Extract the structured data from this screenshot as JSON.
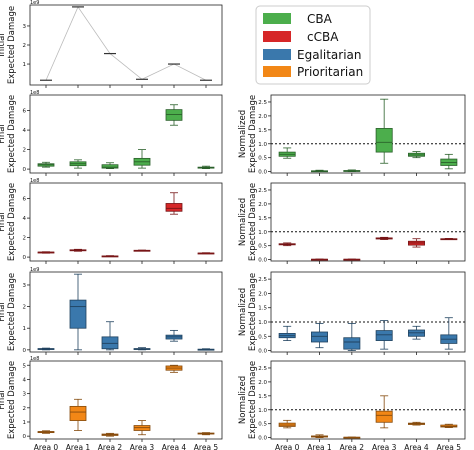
{
  "legend": {
    "entries": [
      {
        "label": "CBA",
        "color": "#4cae4c"
      },
      {
        "label": "cCBA",
        "color": "#d62728"
      },
      {
        "label": "Egalitarian",
        "color": "#3a78ac"
      },
      {
        "label": "Prioritarian",
        "color": "#f28716"
      }
    ],
    "placement": "top-right"
  },
  "colors": {
    "CBA": "#4cae4c",
    "cCBA": "#d62728",
    "Egalitarian": "#3a78ac",
    "Prioritarian": "#f28716"
  },
  "chart_data": [
    {
      "type": "line",
      "panel": "initial",
      "ylabel": [
        "Initial",
        "Expected Damage"
      ],
      "scale_label": "1e9",
      "yticks": [
        1,
        2,
        3
      ],
      "ylim": [
        -0.1,
        4.1
      ],
      "categories": [
        "Area 0",
        "Area 1",
        "Area 2",
        "Area 3",
        "Area 4",
        "Area 5"
      ],
      "values": [
        0.15,
        4.0,
        1.55,
        0.2,
        1.0,
        0.15
      ],
      "grid": false
    },
    {
      "type": "box",
      "panel": "final-CBA",
      "series": "CBA",
      "ylabel": [
        "Final",
        "Expected Damage"
      ],
      "scale_label": "1e8",
      "yticks": [
        0,
        2,
        4,
        6
      ],
      "ylim": [
        -0.4,
        7.6
      ],
      "categories": [
        "Area 0",
        "Area 1",
        "Area 2",
        "Area 3",
        "Area 4",
        "Area 5"
      ],
      "boxes": [
        {
          "min": 0.2,
          "q1": 0.3,
          "med": 0.45,
          "q3": 0.55,
          "max": 0.7
        },
        {
          "min": 0.1,
          "q1": 0.35,
          "med": 0.55,
          "q3": 0.75,
          "max": 0.95
        },
        {
          "min": 0.05,
          "q1": 0.1,
          "med": 0.2,
          "q3": 0.45,
          "max": 0.65
        },
        {
          "min": 0.1,
          "q1": 0.4,
          "med": 0.75,
          "q3": 1.1,
          "max": 2.0
        },
        {
          "min": 4.5,
          "q1": 5.0,
          "med": 5.6,
          "q3": 6.1,
          "max": 6.6
        },
        {
          "min": 0.05,
          "q1": 0.1,
          "med": 0.15,
          "q3": 0.2,
          "max": 0.3
        }
      ]
    },
    {
      "type": "box",
      "panel": "normalized-CBA",
      "series": "CBA",
      "ylabel": [
        "Normalized",
        "Expected Damage"
      ],
      "yticks": [
        0.0,
        0.5,
        1.0,
        1.5,
        2.0,
        2.5
      ],
      "ylim": [
        -0.05,
        2.75
      ],
      "refline": 1.0,
      "categories": [
        "Area 0",
        "Area 1",
        "Area 2",
        "Area 3",
        "Area 4",
        "Area 5"
      ],
      "boxes": [
        {
          "min": 0.48,
          "q1": 0.55,
          "med": 0.62,
          "q3": 0.7,
          "max": 0.85
        },
        {
          "min": 0.0,
          "q1": 0.01,
          "med": 0.02,
          "q3": 0.03,
          "max": 0.05
        },
        {
          "min": 0.0,
          "q1": 0.01,
          "med": 0.02,
          "q3": 0.04,
          "max": 0.06
        },
        {
          "min": 0.3,
          "q1": 0.7,
          "med": 1.05,
          "q3": 1.55,
          "max": 2.6
        },
        {
          "min": 0.5,
          "q1": 0.55,
          "med": 0.6,
          "q3": 0.66,
          "max": 0.72
        },
        {
          "min": 0.1,
          "q1": 0.22,
          "med": 0.33,
          "q3": 0.45,
          "max": 0.62
        }
      ]
    },
    {
      "type": "box",
      "panel": "final-cCBA",
      "series": "cCBA",
      "ylabel": [
        "Final",
        "Expected Damage"
      ],
      "scale_label": "1e8",
      "yticks": [
        0,
        2,
        4,
        6
      ],
      "ylim": [
        -0.4,
        7.6
      ],
      "categories": [
        "Area 0",
        "Area 1",
        "Area 2",
        "Area 3",
        "Area 4",
        "Area 5"
      ],
      "boxes": [
        {
          "min": 0.4,
          "q1": 0.45,
          "med": 0.5,
          "q3": 0.52,
          "max": 0.55
        },
        {
          "min": 0.6,
          "q1": 0.65,
          "med": 0.7,
          "q3": 0.75,
          "max": 0.8
        },
        {
          "min": 0.05,
          "q1": 0.08,
          "med": 0.1,
          "q3": 0.12,
          "max": 0.15
        },
        {
          "min": 0.62,
          "q1": 0.65,
          "med": 0.68,
          "q3": 0.7,
          "max": 0.72
        },
        {
          "min": 4.4,
          "q1": 4.7,
          "med": 5.0,
          "q3": 5.5,
          "max": 6.6
        },
        {
          "min": 0.35,
          "q1": 0.38,
          "med": 0.4,
          "q3": 0.42,
          "max": 0.45
        }
      ]
    },
    {
      "type": "box",
      "panel": "normalized-cCBA",
      "series": "cCBA",
      "ylabel": [
        "Normalized",
        "Expected Damage"
      ],
      "yticks": [
        0.0,
        0.5,
        1.0,
        1.5,
        2.0,
        2.5
      ],
      "ylim": [
        -0.05,
        2.75
      ],
      "refline": 1.0,
      "categories": [
        "Area 0",
        "Area 1",
        "Area 2",
        "Area 3",
        "Area 4",
        "Area 5"
      ],
      "boxes": [
        {
          "min": 0.5,
          "q1": 0.53,
          "med": 0.55,
          "q3": 0.57,
          "max": 0.6
        },
        {
          "min": 0.0,
          "q1": 0.005,
          "med": 0.01,
          "q3": 0.015,
          "max": 0.02
        },
        {
          "min": 0.0,
          "q1": 0.005,
          "med": 0.01,
          "q3": 0.015,
          "max": 0.02
        },
        {
          "min": 0.72,
          "q1": 0.74,
          "med": 0.76,
          "q3": 0.78,
          "max": 0.8
        },
        {
          "min": 0.45,
          "q1": 0.52,
          "med": 0.6,
          "q3": 0.66,
          "max": 0.75
        },
        {
          "min": 0.72,
          "q1": 0.73,
          "med": 0.74,
          "q3": 0.75,
          "max": 0.76
        }
      ]
    },
    {
      "type": "box",
      "panel": "final-Egalitarian",
      "series": "Egalitarian",
      "ylabel": [
        "Final",
        "Expected Damage"
      ],
      "scale_label": "1e9",
      "yticks": [
        0,
        1,
        2,
        3
      ],
      "ylim": [
        -0.1,
        3.6
      ],
      "categories": [
        "Area 0",
        "Area 1",
        "Area 2",
        "Area 3",
        "Area 4",
        "Area 5"
      ],
      "boxes": [
        {
          "min": 0.0,
          "q1": 0.02,
          "med": 0.04,
          "q3": 0.06,
          "max": 0.08
        },
        {
          "min": 0.0,
          "q1": 1.0,
          "med": 2.0,
          "q3": 2.3,
          "max": 3.5
        },
        {
          "min": 0.0,
          "q1": 0.05,
          "med": 0.3,
          "q3": 0.6,
          "max": 1.3
        },
        {
          "min": 0.0,
          "q1": 0.02,
          "med": 0.04,
          "q3": 0.06,
          "max": 0.1
        },
        {
          "min": 0.4,
          "q1": 0.5,
          "med": 0.6,
          "q3": 0.68,
          "max": 0.9
        },
        {
          "min": 0.0,
          "q1": 0.01,
          "med": 0.02,
          "q3": 0.03,
          "max": 0.05
        }
      ]
    },
    {
      "type": "box",
      "panel": "normalized-Egalitarian",
      "series": "Egalitarian",
      "ylabel": [
        "Normalized",
        "Expected Damage"
      ],
      "yticks": [
        0.0,
        0.5,
        1.0,
        1.5,
        2.0,
        2.5
      ],
      "ylim": [
        -0.05,
        2.75
      ],
      "refline": 1.0,
      "categories": [
        "Area 0",
        "Area 1",
        "Area 2",
        "Area 3",
        "Area 4",
        "Area 5"
      ],
      "boxes": [
        {
          "min": 0.35,
          "q1": 0.45,
          "med": 0.52,
          "q3": 0.6,
          "max": 0.85
        },
        {
          "min": 0.1,
          "q1": 0.3,
          "med": 0.5,
          "q3": 0.65,
          "max": 0.95
        },
        {
          "min": 0.0,
          "q1": 0.05,
          "med": 0.3,
          "q3": 0.45,
          "max": 0.95
        },
        {
          "min": 0.05,
          "q1": 0.35,
          "med": 0.55,
          "q3": 0.7,
          "max": 1.05
        },
        {
          "min": 0.4,
          "q1": 0.5,
          "med": 0.62,
          "q3": 0.72,
          "max": 0.85
        },
        {
          "min": 0.05,
          "q1": 0.25,
          "med": 0.4,
          "q3": 0.55,
          "max": 1.15
        }
      ]
    },
    {
      "type": "box",
      "panel": "final-Prioritarian",
      "series": "Prioritarian",
      "ylabel": [
        "Final",
        "Expected Damage"
      ],
      "scale_label": "1e8",
      "yticks": [
        0,
        1,
        2,
        3,
        4,
        5
      ],
      "ylim": [
        -0.2,
        5.3
      ],
      "categories": [
        "Area 0",
        "Area 1",
        "Area 2",
        "Area 3",
        "Area 4",
        "Area 5"
      ],
      "boxes": [
        {
          "min": 0.2,
          "q1": 0.25,
          "med": 0.3,
          "q3": 0.33,
          "max": 0.38
        },
        {
          "min": 0.4,
          "q1": 1.1,
          "med": 1.7,
          "q3": 2.1,
          "max": 2.6
        },
        {
          "min": 0.0,
          "q1": 0.05,
          "med": 0.1,
          "q3": 0.15,
          "max": 0.2
        },
        {
          "min": 0.1,
          "q1": 0.4,
          "med": 0.6,
          "q3": 0.75,
          "max": 1.1
        },
        {
          "min": 4.5,
          "q1": 4.65,
          "med": 4.8,
          "q3": 4.95,
          "max": 5.0
        },
        {
          "min": 0.1,
          "q1": 0.15,
          "med": 0.18,
          "q3": 0.22,
          "max": 0.25
        }
      ]
    },
    {
      "type": "box",
      "panel": "normalized-Prioritarian",
      "series": "Prioritarian",
      "ylabel": [
        "Normalized",
        "Expected Damage"
      ],
      "yticks": [
        0.0,
        0.5,
        1.0,
        1.5,
        2.0,
        2.5
      ],
      "ylim": [
        -0.05,
        2.75
      ],
      "refline": 1.0,
      "categories": [
        "Area 0",
        "Area 1",
        "Area 2",
        "Area 3",
        "Area 4",
        "Area 5"
      ],
      "boxes": [
        {
          "min": 0.35,
          "q1": 0.4,
          "med": 0.45,
          "q3": 0.52,
          "max": 0.62
        },
        {
          "min": 0.0,
          "q1": 0.02,
          "med": 0.04,
          "q3": 0.06,
          "max": 0.1
        },
        {
          "min": 0.0,
          "q1": 0.005,
          "med": 0.01,
          "q3": 0.015,
          "max": 0.02
        },
        {
          "min": 0.35,
          "q1": 0.55,
          "med": 0.8,
          "q3": 0.95,
          "max": 1.5
        },
        {
          "min": 0.45,
          "q1": 0.47,
          "med": 0.5,
          "q3": 0.52,
          "max": 0.55
        },
        {
          "min": 0.36,
          "q1": 0.38,
          "med": 0.4,
          "q3": 0.45,
          "max": 0.48
        }
      ]
    }
  ]
}
